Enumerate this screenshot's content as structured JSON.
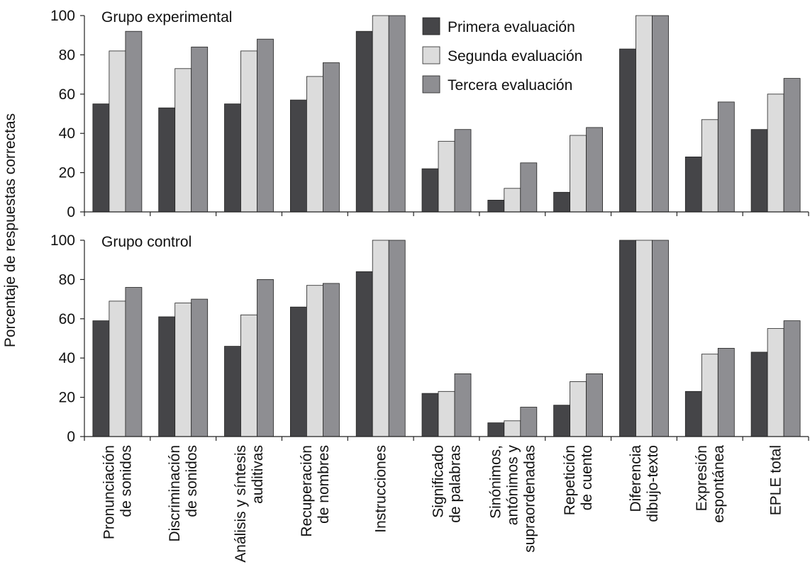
{
  "ylabel": "Porcentaje de respuestas correctas",
  "legend": {
    "placement": "top-center",
    "entries": [
      "Primera evaluación",
      "Segunda evaluación",
      "Tercera evaluación"
    ]
  },
  "colors": {
    "Primera evaluación": "#454548",
    "Segunda evaluación": "#dcdcdc",
    "Tercera evaluación": "#8e8e92"
  },
  "chart_data": [
    {
      "type": "bar",
      "title": "Grupo experimental",
      "categories": [
        "Pronunciación de sonidos",
        "Discriminación de sonidos",
        "Análisis y síntesis auditivas",
        "Recuperación de nombres",
        "Instrucciones",
        "Significado de palabras",
        "Sinónimos, antónimos y supraordenadas",
        "Repetición de cuento",
        "Diferencia dibujo-texto",
        "Expresión espontánea",
        "EPLE total"
      ],
      "series": [
        {
          "name": "Primera evaluación",
          "values": [
            55,
            53,
            55,
            57,
            92,
            22,
            6,
            10,
            83,
            28,
            42
          ]
        },
        {
          "name": "Segunda evaluación",
          "values": [
            82,
            73,
            82,
            69,
            100,
            36,
            12,
            39,
            100,
            47,
            60
          ]
        },
        {
          "name": "Tercera evaluación",
          "values": [
            92,
            84,
            88,
            76,
            100,
            42,
            25,
            43,
            100,
            56,
            68
          ]
        }
      ],
      "yticks": [
        0,
        20,
        40,
        60,
        80,
        100
      ],
      "ylim": [
        0,
        100
      ],
      "grid": false
    },
    {
      "type": "bar",
      "title": "Grupo control",
      "categories": [
        "Pronunciación de sonidos",
        "Discriminación de sonidos",
        "Análisis y síntesis auditivas",
        "Recuperación de nombres",
        "Instrucciones",
        "Significado de palabras",
        "Sinónimos, antónimos y supraordenadas",
        "Repetición de cuento",
        "Diferencia dibujo-texto",
        "Expresión espontánea",
        "EPLE total"
      ],
      "series": [
        {
          "name": "Primera evaluación",
          "values": [
            59,
            61,
            46,
            66,
            84,
            22,
            7,
            16,
            100,
            23,
            43
          ]
        },
        {
          "name": "Segunda evaluación",
          "values": [
            69,
            68,
            62,
            77,
            100,
            23,
            8,
            28,
            100,
            42,
            55
          ]
        },
        {
          "name": "Tercera evaluación",
          "values": [
            76,
            70,
            80,
            78,
            100,
            32,
            15,
            32,
            100,
            45,
            59
          ]
        }
      ],
      "yticks": [
        0,
        20,
        40,
        60,
        80,
        100
      ],
      "ylim": [
        0,
        100
      ],
      "grid": false
    }
  ],
  "xtick_labels": [
    [
      "Pronunciación",
      "de sonidos"
    ],
    [
      "Discriminación",
      "de sonidos"
    ],
    [
      "Análisis y síntesis",
      "auditivas"
    ],
    [
      "Recuperación",
      "de nombres"
    ],
    [
      "Instrucciones"
    ],
    [
      "Significado",
      "de palabras"
    ],
    [
      "Sinónimos,",
      "antónimos y",
      "supraordenadas"
    ],
    [
      "Repetición",
      "de cuento"
    ],
    [
      "Diferencia",
      "dibujo-texto"
    ],
    [
      "Expresión",
      "espontánea"
    ],
    [
      "EPLE total"
    ]
  ]
}
